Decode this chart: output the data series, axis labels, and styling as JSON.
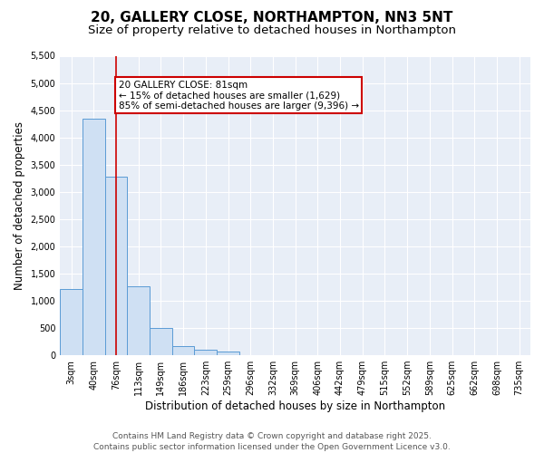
{
  "title": "20, GALLERY CLOSE, NORTHAMPTON, NN3 5NT",
  "subtitle": "Size of property relative to detached houses in Northampton",
  "xlabel": "Distribution of detached houses by size in Northampton",
  "ylabel": "Number of detached properties",
  "categories": [
    "3sqm",
    "40sqm",
    "76sqm",
    "113sqm",
    "149sqm",
    "186sqm",
    "223sqm",
    "259sqm",
    "296sqm",
    "332sqm",
    "369sqm",
    "406sqm",
    "442sqm",
    "479sqm",
    "515sqm",
    "552sqm",
    "589sqm",
    "625sqm",
    "662sqm",
    "698sqm",
    "735sqm"
  ],
  "bar_heights": [
    1220,
    4350,
    3280,
    1260,
    500,
    170,
    100,
    60,
    0,
    0,
    0,
    0,
    0,
    0,
    0,
    0,
    0,
    0,
    0,
    0,
    0
  ],
  "bar_color": "#cfe0f3",
  "bar_edge_color": "#5b9bd5",
  "annotation_text": "20 GALLERY CLOSE: 81sqm\n← 15% of detached houses are smaller (1,629)\n85% of semi-detached houses are larger (9,396) →",
  "annotation_box_color": "#ffffff",
  "annotation_box_edge": "#cc0000",
  "vline_x_idx": 2,
  "vline_color": "#cc0000",
  "ylim": [
    0,
    5500
  ],
  "yticks": [
    0,
    500,
    1000,
    1500,
    2000,
    2500,
    3000,
    3500,
    4000,
    4500,
    5000,
    5500
  ],
  "bg_color": "#ffffff",
  "plot_bg_color": "#e8eef7",
  "grid_color": "#ffffff",
  "footer": "Contains HM Land Registry data © Crown copyright and database right 2025.\nContains public sector information licensed under the Open Government Licence v3.0.",
  "title_fontsize": 11,
  "subtitle_fontsize": 9.5,
  "label_fontsize": 8.5,
  "tick_fontsize": 7,
  "footer_fontsize": 6.5,
  "annotation_fontsize": 7.5
}
